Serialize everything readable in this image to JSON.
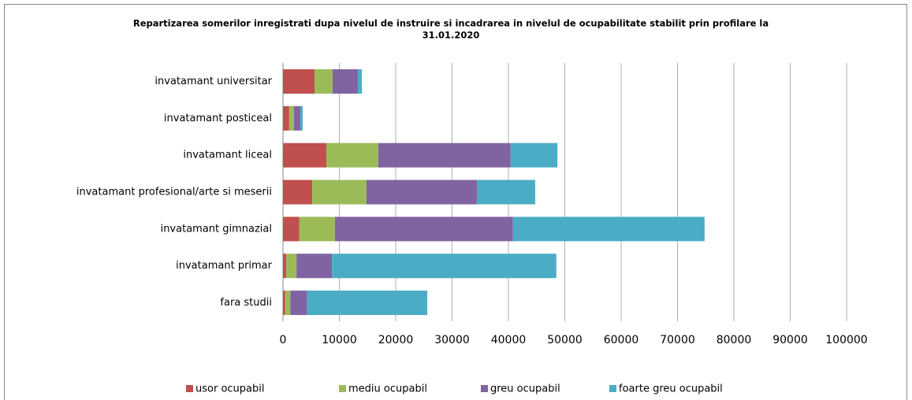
{
  "chart_data": {
    "type": "stacked_barh",
    "title": [
      "Repartizarea somerilor inregistrati dupa  nivelul de instruire si incadrarea in nivelul de ocupabilitate stabilit prin profilare la",
      "31.01.2020"
    ],
    "categories": [
      "invatamant universitar",
      "invatamant posticeal",
      "invatamant liceal",
      "invatamant profesional/arte si meserii",
      "invatamant gimnazial",
      "invatamant primar",
      "fara studii"
    ],
    "series": [
      {
        "name": "usor ocupabil",
        "color": "#c0504d",
        "values": [
          5600,
          1100,
          7700,
          5200,
          2900,
          600,
          400
        ]
      },
      {
        "name": "mediu ocupabil",
        "color": "#9bbb59",
        "values": [
          3200,
          850,
          9200,
          9600,
          6300,
          1800,
          900
        ]
      },
      {
        "name": "greu ocupabil",
        "color": "#8064a2",
        "values": [
          4500,
          1150,
          23500,
          19600,
          31600,
          6300,
          3000
        ]
      },
      {
        "name": "foarte greu ocupabil",
        "color": "#4bacc6",
        "values": [
          700,
          400,
          8300,
          10350,
          34000,
          39800,
          21300
        ]
      }
    ],
    "xlim": [
      0,
      100000
    ],
    "xticks": [
      0,
      10000,
      20000,
      30000,
      40000,
      50000,
      60000,
      70000,
      80000,
      90000,
      100000
    ],
    "grid": true,
    "legend": "bottom"
  }
}
